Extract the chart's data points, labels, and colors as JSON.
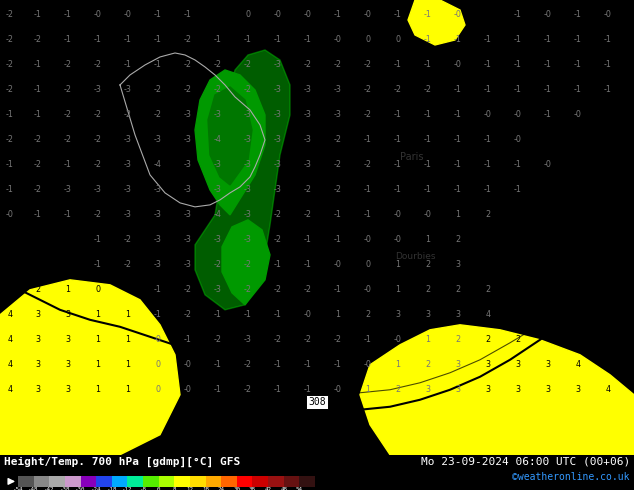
{
  "title_left": "Height/Temp. 700 hPa [gdmp][°C] GFS",
  "title_right": "Mo 23-09-2024 06:00 UTC (00+06)",
  "credit": "©weatheronline.co.uk",
  "bg_green": "#00dd00",
  "bg_yellow": "#ffff00",
  "bg_yellow2": "#ffee00",
  "dark_green": "#009900",
  "darker_green": "#007700",
  "num_color_dark": "#000000",
  "num_color_gray": "#888888",
  "contour_color": "#000000",
  "border_color": "#aaaaaa",
  "colorbar_colors": [
    "#555555",
    "#888888",
    "#aaaaaa",
    "#cc99cc",
    "#8800bb",
    "#2244ee",
    "#00aaff",
    "#00ee99",
    "#55ee00",
    "#aaff00",
    "#ffff00",
    "#ffdd00",
    "#ffaa00",
    "#ff6600",
    "#ff0000",
    "#cc0000",
    "#991111",
    "#661111",
    "#331111"
  ],
  "colorbar_labels": [
    "-54",
    "-48",
    "-42",
    "-38",
    "-30",
    "-24",
    "-18",
    "-12",
    "-8",
    "0",
    "8",
    "12",
    "18",
    "24",
    "30",
    "38",
    "42",
    "48",
    "54"
  ]
}
